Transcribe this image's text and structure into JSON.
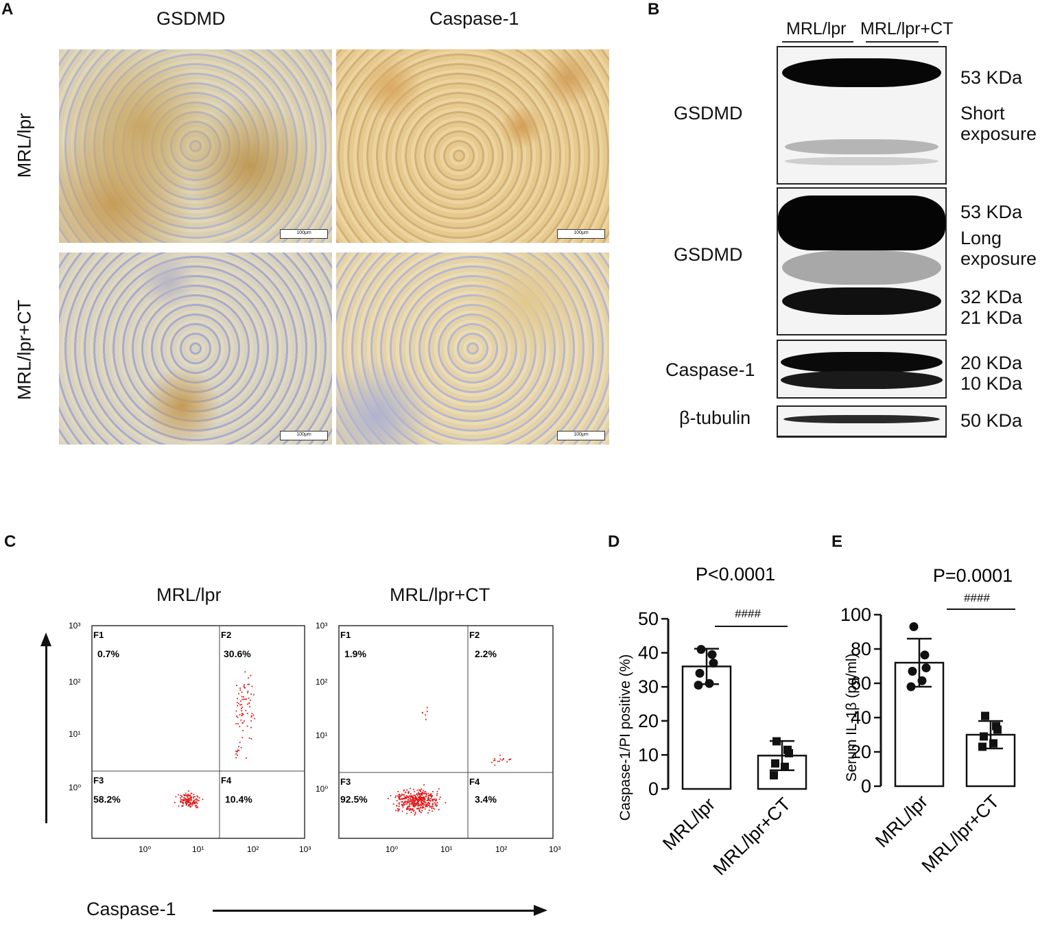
{
  "panel_letters": {
    "a": "A",
    "b": "B",
    "c": "C",
    "d": "D",
    "e": "E"
  },
  "panel_a": {
    "col_headers": [
      "GSDMD",
      "Caspase-1"
    ],
    "row_headers": [
      "MRL/lpr",
      "MRL/lpr+CT"
    ],
    "scale_bar": "100μm"
  },
  "panel_b": {
    "group_labels": [
      "MRL/lpr",
      "MRL/lpr+CT"
    ],
    "blot_labels": [
      "GSDMD",
      "GSDMD",
      "Caspase-1",
      "β-tubulin"
    ],
    "short_kda": "53 KDa",
    "short_note_1": "Short",
    "short_note_2": "exposure",
    "long_kda_1": "53 KDa",
    "long_note_1": "Long",
    "long_note_2": "exposure",
    "long_kda_2": "32 KDa",
    "long_kda_3": "21 KDa",
    "casp_kda_1": "20 KDa",
    "casp_kda_2": "10 KDa",
    "tubulin_kda": "50 KDa"
  },
  "panel_c": {
    "titles": [
      "MRL/lpr",
      "MRL/lpr+CT"
    ],
    "x_axis_label": "Caspase-1",
    "x_ticks": [
      "10⁰",
      "10¹",
      "10²",
      "10³"
    ],
    "y_ticks": [
      "10³",
      "10²",
      "10¹",
      "10⁰"
    ],
    "quadrants_left": {
      "F1": "F1",
      "F1_val": "0.7%",
      "F2": "F2",
      "F2_val": "30.6%",
      "F3": "F3",
      "F3_val": "58.2%",
      "F4": "F4",
      "F4_val": "10.4%"
    },
    "quadrants_right": {
      "F1": "F1",
      "F1_val": "1.9%",
      "F2": "F2",
      "F2_val": "2.2%",
      "F3": "F3",
      "F3_val": "92.5%",
      "F4": "F4",
      "F4_val": "3.4%"
    },
    "dot_color": "#e0191b"
  },
  "chart_data": [
    {
      "type": "bar",
      "panel": "D",
      "title": "P<0.0001",
      "significance": "####",
      "ylabel": "Caspase-1/PI positive (%)",
      "categories": [
        "MRL/lpr",
        "MRL/lpr+CT"
      ],
      "values": [
        36,
        9.8
      ],
      "errors": [
        5.2,
        4.3
      ],
      "points": [
        [
          41,
          39.5,
          37,
          34,
          31,
          30.5
        ],
        [
          14,
          11.5,
          10.5,
          7.5,
          6.5,
          4
        ]
      ],
      "markers": [
        "circle",
        "square"
      ],
      "ylim": [
        0,
        50
      ],
      "yticks": [
        0,
        10,
        20,
        30,
        40,
        50
      ]
    },
    {
      "type": "bar",
      "panel": "E",
      "title": "P=0.0001",
      "significance": "####",
      "ylabel": "Serum IL-1β (pg/ml)",
      "categories": [
        "MRL/lpr",
        "MRL/lpr+CT"
      ],
      "values": [
        72,
        30
      ],
      "errors": [
        14,
        8
      ],
      "points": [
        [
          93,
          76.5,
          69,
          67,
          61.5,
          58
        ],
        [
          41,
          35,
          33,
          29,
          25,
          23
        ]
      ],
      "markers": [
        "circle",
        "square"
      ],
      "ylim": [
        0,
        100
      ],
      "yticks": [
        0,
        20,
        40,
        60,
        80,
        100
      ]
    }
  ]
}
